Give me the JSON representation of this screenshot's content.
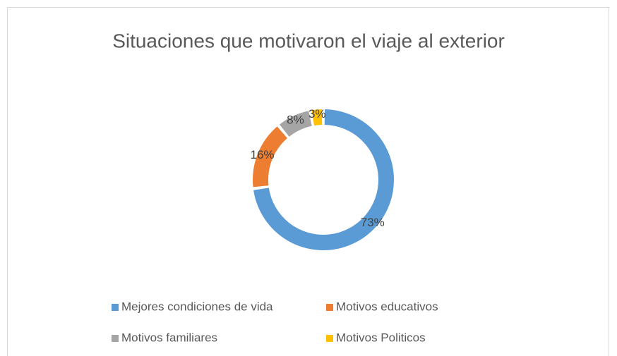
{
  "chart_data": {
    "type": "pie",
    "donut": true,
    "title": "Situaciones que motivaron el viaje al exterior",
    "categories": [
      "Mejores condiciones de vida",
      "Motivos educativos",
      "Motivos familiares",
      "Motivos Politicos"
    ],
    "values": [
      73,
      16,
      8,
      3
    ],
    "value_labels": [
      "73%",
      "16%",
      "8%",
      "3%"
    ],
    "colors": [
      "#5b9bd5",
      "#ed7d31",
      "#a5a5a5",
      "#ffc000"
    ],
    "legend": "bottom"
  }
}
